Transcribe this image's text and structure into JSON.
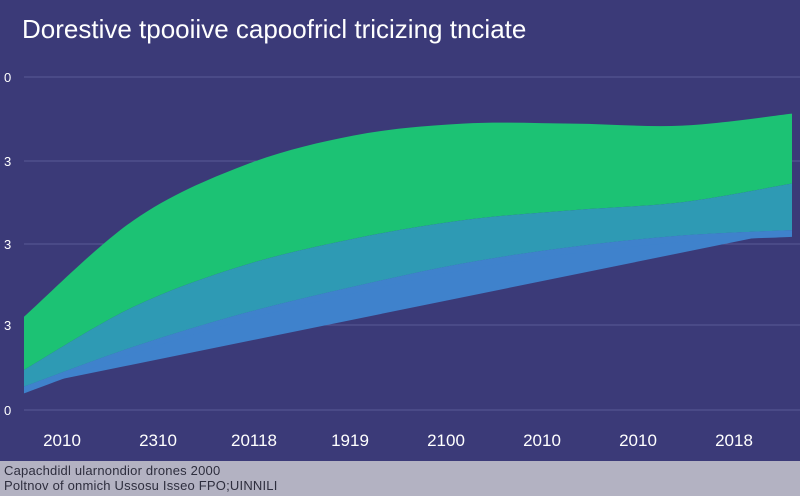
{
  "chart_data": {
    "type": "area",
    "title": "Dorestive tpooiive capoofricl tricizing tnciate",
    "xlabel": "",
    "ylabel": "",
    "categories": [
      "2010",
      "2310",
      "20118",
      "1919",
      "2100",
      "2010",
      "2010",
      "2018"
    ],
    "y_tick_labels": [
      "0",
      "3",
      "3",
      "3",
      "0"
    ],
    "ylim": [
      0,
      5
    ],
    "grid": true,
    "stacked": true,
    "series": [
      {
        "color": "#3f82cc",
        "values": [
          0.35,
          0.95,
          1.45,
          1.85,
          2.2,
          2.45,
          2.62,
          2.7
        ]
      },
      {
        "color": "#2e9ab4",
        "values": [
          0.25,
          0.6,
          0.72,
          0.72,
          0.65,
          0.55,
          0.5,
          0.7
        ]
      },
      {
        "color": "#1cc274",
        "values": [
          0.8,
          1.3,
          1.5,
          1.55,
          1.45,
          1.3,
          1.15,
          1.05
        ]
      }
    ]
  },
  "footer": {
    "line1": "Capachdidl ularnondior drones 2000",
    "line2": "Poltnov of onmich Ussosu Isseo FPO;UINNILI"
  },
  "colors": {
    "background": "#3b3a78",
    "gridline": "#5a5a96",
    "tick_label": "#ffffff"
  }
}
